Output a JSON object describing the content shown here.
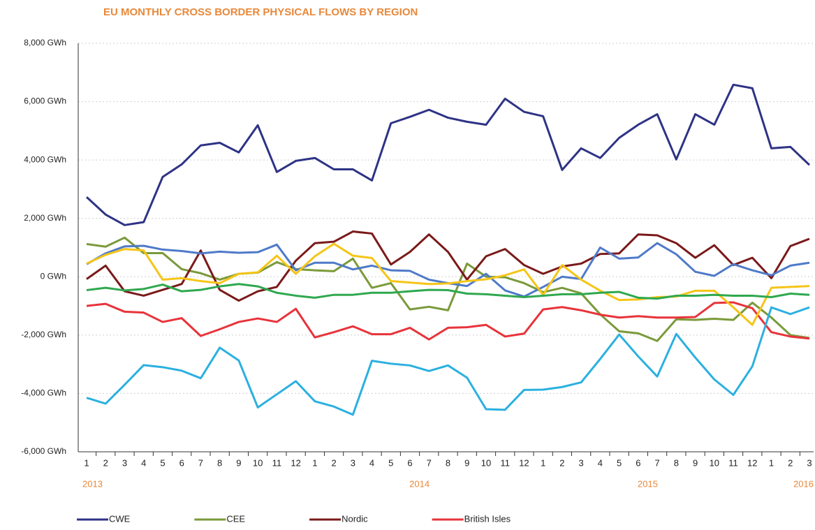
{
  "chart_data": {
    "type": "line",
    "title": "EU MONTHLY CROSS BORDER PHYSICAL FLOWS BY REGION",
    "title_color": "#e8883a",
    "categories": [
      "1",
      "2",
      "3",
      "4",
      "5",
      "6",
      "7",
      "8",
      "9",
      "10",
      "11",
      "12",
      "1",
      "2",
      "3",
      "4",
      "5",
      "6",
      "7",
      "8",
      "9",
      "10",
      "11",
      "12",
      "1",
      "2",
      "3",
      "4",
      "5",
      "6",
      "7",
      "8",
      "9",
      "10",
      "11",
      "12",
      "1",
      "2",
      "3"
    ],
    "years": [
      "2013",
      "2014",
      "2015",
      "2016"
    ],
    "ylim": [
      -6000,
      8000
    ],
    "yticks": [
      {
        "value": -6000,
        "label": "-6,000 GWh"
      },
      {
        "value": -4000,
        "label": "-4,000 GWh"
      },
      {
        "value": -2000,
        "label": "-2,000 GWh"
      },
      {
        "value": 0,
        "label": "0 GWh"
      },
      {
        "value": 2000,
        "label": "2,000 GWh"
      },
      {
        "value": 4000,
        "label": "4,000 GWh"
      },
      {
        "value": 6000,
        "label": "6,000 GWh"
      },
      {
        "value": 8000,
        "label": "8,000 GWh"
      }
    ],
    "grid": true,
    "series": [
      {
        "name": "CWE",
        "color": "#2e3385",
        "values": [
          2730,
          2130,
          1770,
          1870,
          3420,
          3850,
          4500,
          4590,
          4260,
          5190,
          3590,
          3970,
          4070,
          3680,
          3680,
          3300,
          5260,
          5480,
          5720,
          5450,
          5310,
          5210,
          6100,
          5650,
          5500,
          3660,
          4400,
          4070,
          4760,
          5210,
          5570,
          4020,
          5570,
          5210,
          6580,
          6460,
          4400,
          4450,
          3830
        ]
      },
      {
        "name": "CEE",
        "color": "#7a9a3a",
        "values": [
          1120,
          1030,
          1340,
          810,
          810,
          260,
          120,
          -100,
          100,
          140,
          500,
          260,
          220,
          190,
          620,
          -380,
          -220,
          -1120,
          -1030,
          -1150,
          450,
          0,
          -20,
          -220,
          -530,
          -380,
          -570,
          -1290,
          -1870,
          -1940,
          -2200,
          -1460,
          -1480,
          -1440,
          -1480,
          -890,
          -1400,
          -2000,
          -2100
        ]
      },
      {
        "name": "Nordic",
        "color": "#7a1a1a",
        "values": [
          -80,
          380,
          -500,
          -650,
          -450,
          -250,
          900,
          -450,
          -820,
          -500,
          -350,
          550,
          1150,
          1200,
          1550,
          1480,
          420,
          850,
          1450,
          850,
          -100,
          700,
          950,
          400,
          100,
          350,
          450,
          780,
          800,
          1450,
          1420,
          1150,
          650,
          1080,
          400,
          650,
          -50,
          1050,
          1300
        ]
      },
      {
        "name": "British Isles",
        "color": "#e8333a",
        "values": [
          -1000,
          -930,
          -1200,
          -1230,
          -1550,
          -1420,
          -2030,
          -1800,
          -1550,
          -1430,
          -1550,
          -1100,
          -2080,
          -1900,
          -1700,
          -1970,
          -1970,
          -1750,
          -2150,
          -1750,
          -1730,
          -1650,
          -2050,
          -1950,
          -1120,
          -1040,
          -1150,
          -1300,
          -1400,
          -1350,
          -1400,
          -1400,
          -1380,
          -900,
          -880,
          -1080,
          -1900,
          -2050,
          -2120
        ]
      },
      {
        "color": "#2bb0e0",
        "values": [
          -4150,
          -4350,
          -3700,
          -3030,
          -3100,
          -3220,
          -3480,
          -2430,
          -2870,
          -4480,
          -4030,
          -3580,
          -4270,
          -4450,
          -4730,
          -2880,
          -2980,
          -3040,
          -3230,
          -3040,
          -3460,
          -4540,
          -4560,
          -3880,
          -3870,
          -3780,
          -3620,
          -2820,
          -1980,
          -2730,
          -3420,
          -1960,
          -2770,
          -3520,
          -4050,
          -3070,
          -1050,
          -1280,
          -1050
        ]
      },
      {
        "color": "#4f7ac8",
        "values": [
          430,
          800,
          1040,
          1060,
          930,
          880,
          800,
          860,
          820,
          840,
          1100,
          220,
          480,
          480,
          250,
          380,
          220,
          200,
          -100,
          -220,
          -320,
          100,
          -470,
          -680,
          -350,
          0,
          -80,
          1000,
          620,
          660,
          1150,
          770,
          170,
          30,
          430,
          220,
          50,
          380,
          480
        ]
      },
      {
        "color": "#f5c518",
        "values": [
          450,
          750,
          950,
          900,
          -100,
          -50,
          -150,
          -220,
          100,
          150,
          720,
          100,
          700,
          1130,
          720,
          640,
          -150,
          -200,
          -250,
          -230,
          -150,
          -90,
          50,
          250,
          -620,
          400,
          -100,
          -480,
          -800,
          -780,
          -700,
          -680,
          -480,
          -480,
          -1050,
          -1650,
          -380,
          -350,
          -320
        ]
      },
      {
        "color": "#2fa84f",
        "values": [
          -460,
          -380,
          -470,
          -420,
          -270,
          -500,
          -450,
          -330,
          -250,
          -330,
          -550,
          -650,
          -720,
          -620,
          -620,
          -550,
          -550,
          -500,
          -450,
          -460,
          -580,
          -600,
          -650,
          -700,
          -650,
          -600,
          -600,
          -550,
          -520,
          -720,
          -750,
          -650,
          -650,
          -620,
          -650,
          -650,
          -700,
          -580,
          -620
        ]
      }
    ]
  }
}
